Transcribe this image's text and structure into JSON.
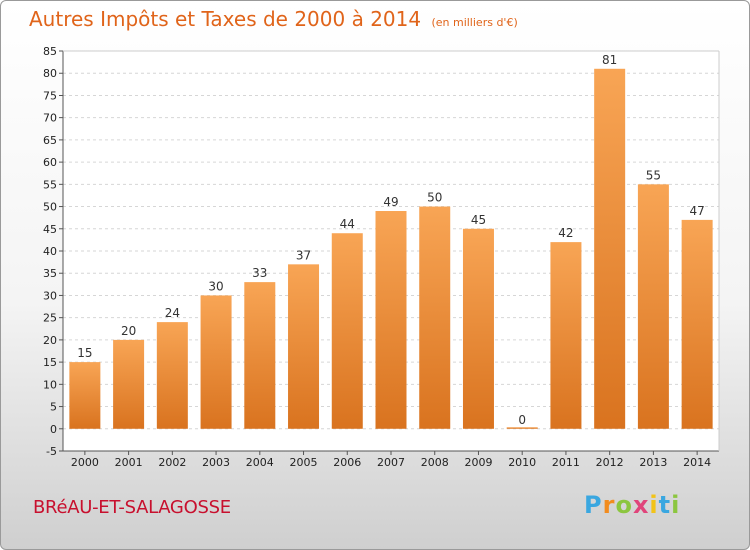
{
  "title": "Autres Impôts et Taxes de 2000 à 2014",
  "subtitle": "(en milliers d'€)",
  "commune": "BRéAU-ET-SALAGOSSE",
  "logo": [
    "P",
    "r",
    "o",
    "x",
    "i",
    "t",
    "i"
  ],
  "colors": {
    "title": "#e0641a",
    "commune": "#c8102e",
    "bar_top": "#f8a555",
    "bar_bottom": "#d9731f",
    "logo": [
      "#3aa7e0",
      "#f28c1e",
      "#8cc63f",
      "#e0457b",
      "#f2c318",
      "#3aa7e0",
      "#8cc63f"
    ]
  },
  "chart_data": {
    "type": "bar",
    "categories": [
      "2000",
      "2001",
      "2002",
      "2003",
      "2004",
      "2005",
      "2006",
      "2007",
      "2008",
      "2009",
      "2010",
      "2011",
      "2012",
      "2013",
      "2014"
    ],
    "values": [
      15,
      20,
      24,
      30,
      33,
      37,
      44,
      49,
      50,
      45,
      0,
      42,
      81,
      55,
      47
    ],
    "data_labels": [
      "15",
      "20",
      "24",
      "30",
      "33",
      "37",
      "44",
      "49",
      "50",
      "45",
      "0",
      "42",
      "81",
      "55",
      "47"
    ],
    "ylim": [
      -5,
      85
    ],
    "yticks": [
      -5,
      0,
      5,
      10,
      15,
      20,
      25,
      30,
      35,
      40,
      45,
      50,
      55,
      60,
      65,
      70,
      75,
      80,
      85
    ],
    "grid": true,
    "legend": false
  }
}
